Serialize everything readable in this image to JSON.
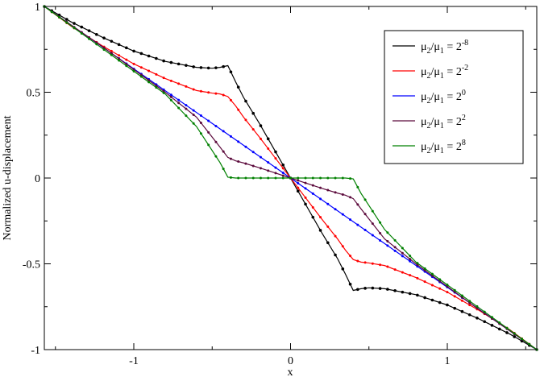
{
  "chart_data": {
    "type": "line",
    "xlabel": "x",
    "ylabel": "Normalized u-displacement",
    "xlim": [
      -1.5708,
      1.5708
    ],
    "ylim": [
      -1,
      1
    ],
    "x_ticks": [
      -1,
      0,
      1
    ],
    "x_tick_labels": [
      "-1",
      "0",
      "1"
    ],
    "y_ticks": [
      -1,
      -0.5,
      0,
      0.5,
      1
    ],
    "y_tick_labels": [
      "-1",
      "-0.5",
      "0",
      "0.5",
      "1"
    ],
    "grid": false,
    "legend_position": "top-right",
    "series_style": "line with dot markers",
    "series": [
      {
        "base": "μ",
        "s1": "2",
        "s2": "1",
        "op": "/",
        "eq": " = 2",
        "exp": "-8",
        "color": "#000000",
        "x": [
          -1.5708,
          -1.4,
          -1.2,
          -1.0,
          -0.8,
          -0.6,
          -0.5,
          -0.45,
          -0.4,
          -0.35,
          -0.3,
          -0.2,
          -0.1,
          0.0,
          0.1,
          0.2,
          0.3,
          0.35,
          0.4,
          0.45,
          0.5,
          0.6,
          0.8,
          1.0,
          1.2,
          1.4,
          1.5708
        ],
        "y": [
          1.0,
          0.91,
          0.82,
          0.74,
          0.68,
          0.645,
          0.64,
          0.645,
          0.655,
          0.56,
          0.47,
          0.32,
          0.16,
          0.0,
          -0.16,
          -0.32,
          -0.47,
          -0.56,
          -0.655,
          -0.645,
          -0.64,
          -0.645,
          -0.68,
          -0.74,
          -0.82,
          -0.91,
          -1.0
        ]
      },
      {
        "base": "μ",
        "s1": "2",
        "s2": "1",
        "op": "/",
        "eq": " = 2",
        "exp": "-2",
        "color": "#ff0000",
        "x": [
          -1.5708,
          -1.4,
          -1.2,
          -1.0,
          -0.8,
          -0.6,
          -0.5,
          -0.45,
          -0.4,
          -0.35,
          -0.3,
          -0.2,
          -0.1,
          0.0,
          0.1,
          0.2,
          0.3,
          0.35,
          0.4,
          0.45,
          0.5,
          0.6,
          0.8,
          1.0,
          1.2,
          1.4,
          1.5708
        ],
        "y": [
          1.0,
          0.885,
          0.77,
          0.665,
          0.58,
          0.51,
          0.495,
          0.49,
          0.475,
          0.42,
          0.355,
          0.24,
          0.12,
          0.0,
          -0.12,
          -0.24,
          -0.355,
          -0.42,
          -0.475,
          -0.49,
          -0.495,
          -0.51,
          -0.58,
          -0.665,
          -0.77,
          -0.885,
          -1.0
        ]
      },
      {
        "base": "μ",
        "s1": "2",
        "s2": "1",
        "op": "/",
        "eq": " = 2",
        "exp": "0",
        "color": "#0000ff",
        "x": [
          -1.5708,
          1.5708
        ],
        "y": [
          1.0,
          -1.0
        ]
      },
      {
        "base": "μ",
        "s1": "2",
        "s2": "1",
        "op": "/",
        "eq": " = 2",
        "exp": "2",
        "color": "#5c0a3c",
        "x": [
          -1.5708,
          -1.2,
          -0.8,
          -0.6,
          -0.45,
          -0.4,
          -0.35,
          -0.3,
          -0.2,
          -0.1,
          0.0,
          0.1,
          0.2,
          0.3,
          0.35,
          0.4,
          0.45,
          0.6,
          0.8,
          1.2,
          1.5708
        ],
        "y": [
          1.0,
          0.765,
          0.5,
          0.355,
          0.18,
          0.12,
          0.1,
          0.088,
          0.06,
          0.03,
          0.0,
          -0.03,
          -0.06,
          -0.088,
          -0.1,
          -0.12,
          -0.18,
          -0.355,
          -0.5,
          -0.765,
          -1.0
        ]
      },
      {
        "base": "μ",
        "s1": "2",
        "s2": "1",
        "op": "/",
        "eq": " = 2",
        "exp": "8",
        "color": "#008000",
        "x": [
          -1.5708,
          -1.2,
          -0.8,
          -0.6,
          -0.45,
          -0.4,
          -0.35,
          -0.2,
          0.0,
          0.2,
          0.35,
          0.4,
          0.45,
          0.6,
          0.8,
          1.2,
          1.5708
        ],
        "y": [
          1.0,
          0.755,
          0.49,
          0.3,
          0.09,
          0.005,
          0.0,
          0.0,
          0.0,
          0.0,
          0.0,
          -0.005,
          -0.09,
          -0.3,
          -0.49,
          -0.755,
          -1.0
        ]
      }
    ]
  }
}
